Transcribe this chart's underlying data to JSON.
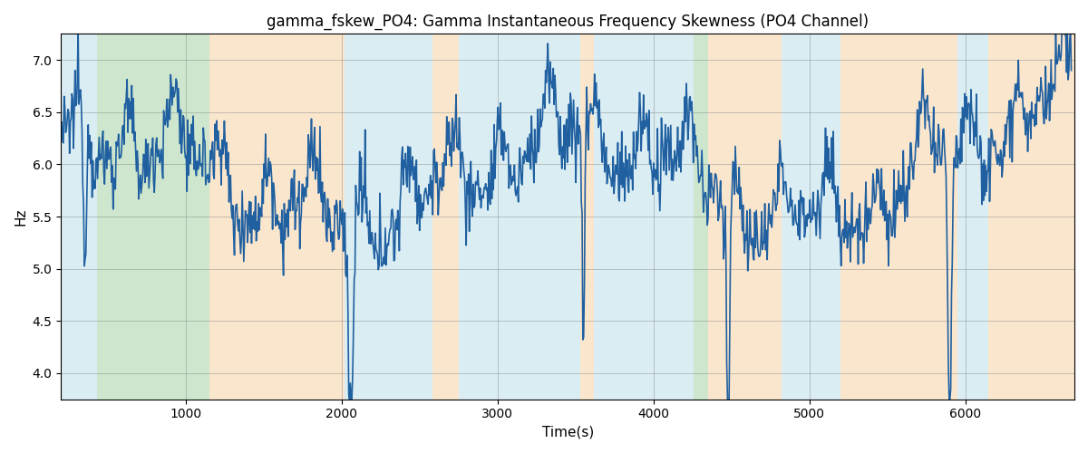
{
  "title": "gamma_fskew_PO4: Gamma Instantaneous Frequency Skewness (PO4 Channel)",
  "xlabel": "Time(s)",
  "ylabel": "Hz",
  "xlim": [
    200,
    6700
  ],
  "ylim": [
    3.75,
    7.25
  ],
  "line_color": "#2060a0",
  "line_width": 1.2,
  "grid": true,
  "xticks": [
    1000,
    2000,
    3000,
    4000,
    5000,
    6000
  ],
  "yticks": [
    4.0,
    4.5,
    5.0,
    5.5,
    6.0,
    6.5,
    7.0
  ],
  "bands": [
    {
      "xmin": 200,
      "xmax": 430,
      "color": "#add8e6",
      "alpha": 0.45
    },
    {
      "xmin": 430,
      "xmax": 1150,
      "color": "#90c990",
      "alpha": 0.45
    },
    {
      "xmin": 1150,
      "xmax": 2020,
      "color": "#f5c890",
      "alpha": 0.45
    },
    {
      "xmin": 2020,
      "xmax": 2580,
      "color": "#add8e6",
      "alpha": 0.45
    },
    {
      "xmin": 2580,
      "xmax": 2750,
      "color": "#f5c890",
      "alpha": 0.45
    },
    {
      "xmin": 2750,
      "xmax": 3530,
      "color": "#add8e6",
      "alpha": 0.45
    },
    {
      "xmin": 3530,
      "xmax": 3620,
      "color": "#f5c890",
      "alpha": 0.45
    },
    {
      "xmin": 3620,
      "xmax": 4260,
      "color": "#add8e6",
      "alpha": 0.45
    },
    {
      "xmin": 4260,
      "xmax": 4350,
      "color": "#90c990",
      "alpha": 0.45
    },
    {
      "xmin": 4350,
      "xmax": 4820,
      "color": "#f5c890",
      "alpha": 0.45
    },
    {
      "xmin": 4820,
      "xmax": 5200,
      "color": "#add8e6",
      "alpha": 0.45
    },
    {
      "xmin": 5200,
      "xmax": 5950,
      "color": "#f5c890",
      "alpha": 0.45
    },
    {
      "xmin": 5950,
      "xmax": 6150,
      "color": "#add8e6",
      "alpha": 0.45
    },
    {
      "xmin": 6150,
      "xmax": 6700,
      "color": "#f5c890",
      "alpha": 0.45
    }
  ],
  "signal_seed": 12345,
  "n_points": 1300,
  "time_start": 200,
  "time_end": 6680
}
